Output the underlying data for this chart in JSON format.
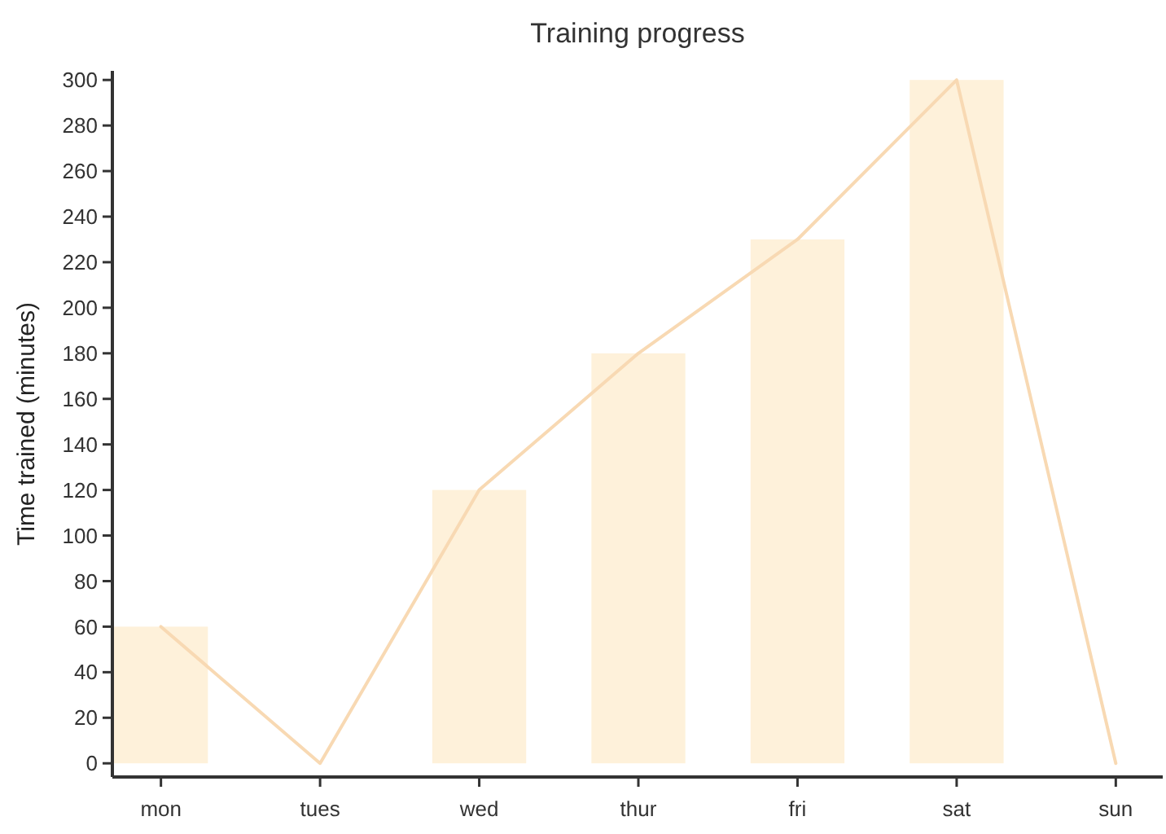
{
  "chart_data": {
    "type": "bar",
    "title": "Training progress",
    "ylabel": "Time trained (minutes)",
    "categories": [
      "mon",
      "tues",
      "wed",
      "thur",
      "fri",
      "sat",
      "sun"
    ],
    "series": [
      {
        "color": "#fef1da",
        "values": [
          60,
          0,
          120,
          180,
          230,
          300,
          0
        ]
      },
      {
        "type": "line",
        "color": "#f8d9b3",
        "values": [
          60,
          0,
          120,
          180,
          230,
          300,
          0
        ]
      }
    ],
    "ylim": [
      -6,
      304
    ],
    "yticks": [
      0,
      20,
      40,
      60,
      80,
      100,
      120,
      140,
      160,
      180,
      200,
      220,
      240,
      260,
      280,
      300
    ]
  }
}
